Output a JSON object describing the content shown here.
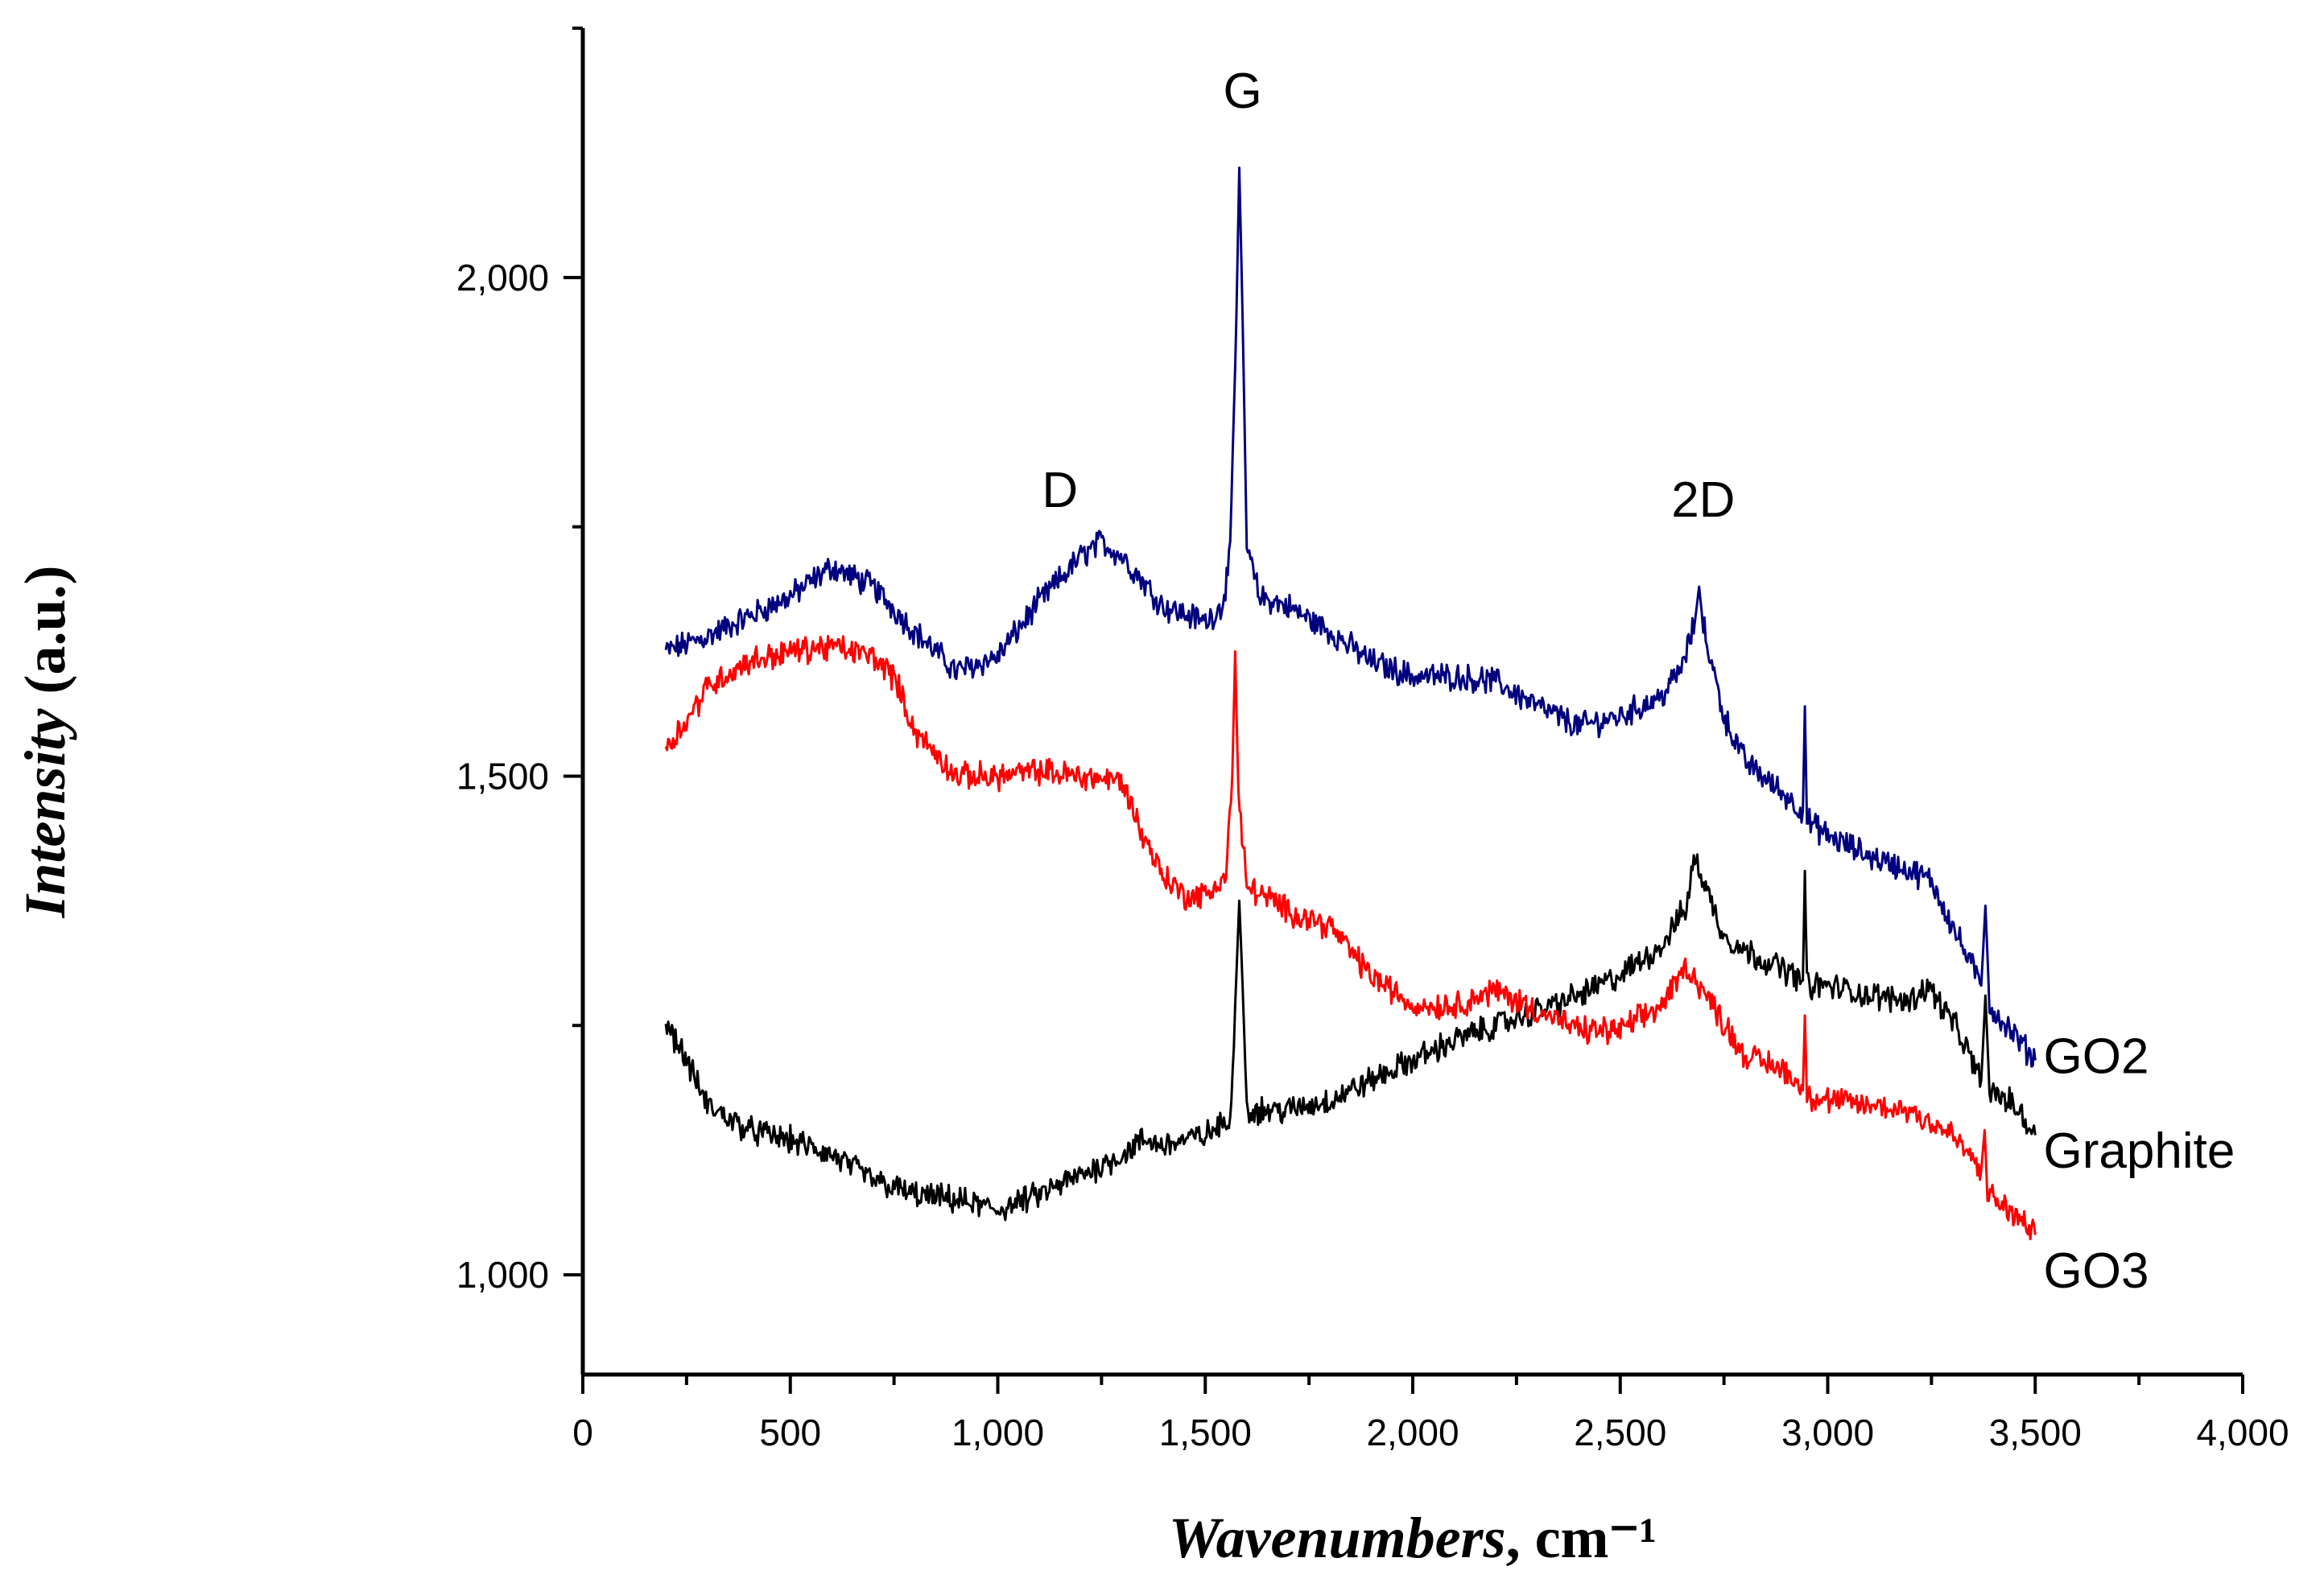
{
  "chart_data": {
    "type": "line",
    "title": "",
    "xlabel": {
      "italic": "Wavenumbers",
      "regular": ", cm⁻¹"
    },
    "ylabel": {
      "italic": "Intensity",
      "regular": " (a.u.)"
    },
    "xlim": [
      0,
      4000
    ],
    "ylim": [
      900,
      2250
    ],
    "xticks": [
      0,
      500,
      1000,
      1500,
      2000,
      2500,
      3000,
      3500,
      4000
    ],
    "xtick_labels": [
      "0",
      "500",
      "1,000",
      "1,500",
      "2,000",
      "2,500",
      "3,000",
      "3,500",
      "4,000"
    ],
    "yticks": [
      1000,
      1500,
      2000
    ],
    "ytick_labels": [
      "1,000",
      "1,500",
      "2,000"
    ],
    "grid": false,
    "annotations": [
      {
        "text": "D",
        "x": 1150,
        "y": 1770
      },
      {
        "text": "G",
        "x": 1590,
        "y": 2170
      },
      {
        "text": "2D",
        "x": 2700,
        "y": 1760
      }
    ],
    "series": [
      {
        "name": "GO2",
        "color": "#00007f",
        "points": [
          [
            200,
            1625
          ],
          [
            300,
            1640
          ],
          [
            400,
            1660
          ],
          [
            500,
            1680
          ],
          [
            600,
            1710
          ],
          [
            700,
            1690
          ],
          [
            800,
            1645
          ],
          [
            900,
            1605
          ],
          [
            1000,
            1620
          ],
          [
            1100,
            1675
          ],
          [
            1200,
            1720
          ],
          [
            1250,
            1735
          ],
          [
            1300,
            1720
          ],
          [
            1400,
            1670
          ],
          [
            1500,
            1655
          ],
          [
            1540,
            1670
          ],
          [
            1560,
            1720
          ],
          [
            1575,
            1960
          ],
          [
            1582,
            2110
          ],
          [
            1590,
            1960
          ],
          [
            1600,
            1730
          ],
          [
            1630,
            1680
          ],
          [
            1700,
            1670
          ],
          [
            1800,
            1645
          ],
          [
            1900,
            1615
          ],
          [
            2000,
            1600
          ],
          [
            2100,
            1600
          ],
          [
            2200,
            1595
          ],
          [
            2300,
            1570
          ],
          [
            2400,
            1550
          ],
          [
            2500,
            1560
          ],
          [
            2600,
            1580
          ],
          [
            2650,
            1610
          ],
          [
            2680,
            1655
          ],
          [
            2690,
            1690
          ],
          [
            2700,
            1650
          ],
          [
            2750,
            1560
          ],
          [
            2800,
            1515
          ],
          [
            2900,
            1480
          ],
          [
            2940,
            1465
          ],
          [
            2945,
            1570
          ],
          [
            2950,
            1455
          ],
          [
            3000,
            1440
          ],
          [
            3100,
            1420
          ],
          [
            3200,
            1405
          ],
          [
            3250,
            1395
          ],
          [
            3300,
            1350
          ],
          [
            3370,
            1290
          ],
          [
            3380,
            1370
          ],
          [
            3390,
            1270
          ],
          [
            3450,
            1240
          ],
          [
            3500,
            1215
          ]
        ]
      },
      {
        "name": "Graphite",
        "color": "#000000",
        "points": [
          [
            200,
            1255
          ],
          [
            250,
            1215
          ],
          [
            300,
            1170
          ],
          [
            400,
            1145
          ],
          [
            500,
            1135
          ],
          [
            600,
            1120
          ],
          [
            700,
            1095
          ],
          [
            800,
            1080
          ],
          [
            900,
            1075
          ],
          [
            1000,
            1065
          ],
          [
            1100,
            1080
          ],
          [
            1200,
            1100
          ],
          [
            1300,
            1120
          ],
          [
            1350,
            1135
          ],
          [
            1400,
            1130
          ],
          [
            1500,
            1140
          ],
          [
            1560,
            1155
          ],
          [
            1575,
            1300
          ],
          [
            1582,
            1375
          ],
          [
            1590,
            1290
          ],
          [
            1600,
            1165
          ],
          [
            1700,
            1165
          ],
          [
            1800,
            1175
          ],
          [
            1900,
            1195
          ],
          [
            2000,
            1215
          ],
          [
            2100,
            1235
          ],
          [
            2200,
            1250
          ],
          [
            2300,
            1265
          ],
          [
            2400,
            1280
          ],
          [
            2500,
            1300
          ],
          [
            2600,
            1330
          ],
          [
            2660,
            1370
          ],
          [
            2680,
            1420
          ],
          [
            2700,
            1395
          ],
          [
            2750,
            1340
          ],
          [
            2800,
            1325
          ],
          [
            2900,
            1305
          ],
          [
            2940,
            1295
          ],
          [
            2945,
            1405
          ],
          [
            2950,
            1290
          ],
          [
            3000,
            1290
          ],
          [
            3100,
            1280
          ],
          [
            3200,
            1275
          ],
          [
            3240,
            1290
          ],
          [
            3300,
            1255
          ],
          [
            3370,
            1195
          ],
          [
            3380,
            1280
          ],
          [
            3390,
            1185
          ],
          [
            3450,
            1170
          ],
          [
            3500,
            1140
          ]
        ]
      },
      {
        "name": "GO3",
        "color": "#ff0000",
        "points": [
          [
            200,
            1530
          ],
          [
            250,
            1555
          ],
          [
            300,
            1590
          ],
          [
            400,
            1615
          ],
          [
            500,
            1625
          ],
          [
            600,
            1630
          ],
          [
            700,
            1620
          ],
          [
            750,
            1600
          ],
          [
            800,
            1545
          ],
          [
            900,
            1500
          ],
          [
            1000,
            1500
          ],
          [
            1100,
            1505
          ],
          [
            1200,
            1500
          ],
          [
            1300,
            1495
          ],
          [
            1350,
            1440
          ],
          [
            1400,
            1400
          ],
          [
            1450,
            1380
          ],
          [
            1500,
            1380
          ],
          [
            1550,
            1400
          ],
          [
            1565,
            1500
          ],
          [
            1572,
            1625
          ],
          [
            1580,
            1480
          ],
          [
            1600,
            1390
          ],
          [
            1700,
            1365
          ],
          [
            1800,
            1350
          ],
          [
            1900,
            1300
          ],
          [
            2000,
            1270
          ],
          [
            2100,
            1270
          ],
          [
            2200,
            1285
          ],
          [
            2300,
            1265
          ],
          [
            2400,
            1245
          ],
          [
            2500,
            1245
          ],
          [
            2600,
            1270
          ],
          [
            2660,
            1310
          ],
          [
            2700,
            1285
          ],
          [
            2800,
            1220
          ],
          [
            2900,
            1205
          ],
          [
            2940,
            1185
          ],
          [
            2945,
            1260
          ],
          [
            2950,
            1180
          ],
          [
            3000,
            1175
          ],
          [
            3100,
            1170
          ],
          [
            3200,
            1165
          ],
          [
            3300,
            1140
          ],
          [
            3370,
            1105
          ],
          [
            3378,
            1145
          ],
          [
            3385,
            1080
          ],
          [
            3450,
            1060
          ],
          [
            3500,
            1040
          ]
        ]
      }
    ],
    "series_label_order": [
      "GO2",
      "Graphite",
      "GO3"
    ]
  }
}
